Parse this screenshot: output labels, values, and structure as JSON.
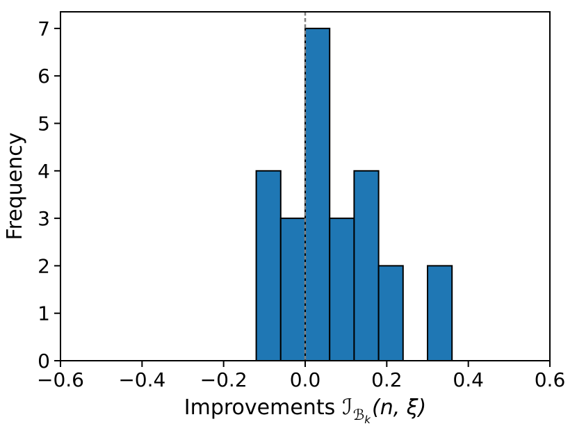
{
  "chart_data": {
    "type": "bar",
    "subtype": "histogram",
    "title": "",
    "xlabel": "Improvements ℐ_{ℬ_k}(n, ξ)",
    "xlabel_parts": {
      "prefix": "Improvements",
      "script_I": "ℐ",
      "script_B": "ℬ",
      "sub_k": "k",
      "args": "(n, ξ)"
    },
    "ylabel": "Frequency",
    "bin_edges": [
      -0.12,
      -0.06,
      0.0,
      0.06,
      0.12,
      0.18,
      0.24,
      0.3,
      0.36
    ],
    "counts": [
      4,
      3,
      7,
      3,
      4,
      2,
      0,
      2
    ],
    "xlim": [
      -0.6,
      0.6
    ],
    "ylim": [
      0,
      7.35
    ],
    "xticks": [
      -0.6,
      -0.4,
      -0.2,
      0.0,
      0.2,
      0.4,
      0.6
    ],
    "xtick_labels": [
      "−0.6",
      "−0.4",
      "−0.2",
      "0.0",
      "0.2",
      "0.4",
      "0.6"
    ],
    "yticks": [
      0,
      1,
      2,
      3,
      4,
      5,
      6,
      7
    ],
    "ytick_labels": [
      "0",
      "1",
      "2",
      "3",
      "4",
      "5",
      "6",
      "7"
    ],
    "grid": false,
    "legend": false,
    "bar_color": "#1f77b4",
    "bar_edge_color": "#000000",
    "axis_color": "#000000",
    "background": "#ffffff",
    "vline": {
      "x": 0.0,
      "color": "#7f7f7f",
      "style": "dashed"
    }
  }
}
